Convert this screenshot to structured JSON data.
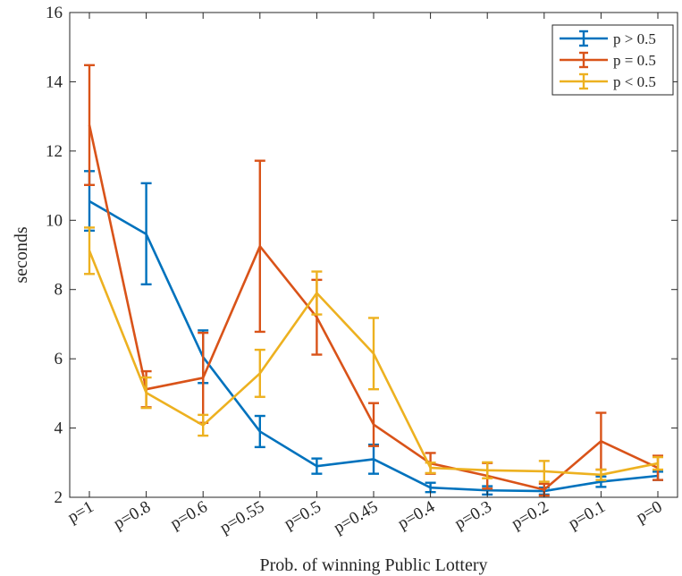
{
  "chart_data": {
    "type": "line",
    "title": "",
    "xlabel": "Prob. of winning Public Lottery",
    "ylabel": "seconds",
    "categories": [
      "p=1",
      "p=0.8",
      "p=0.6",
      "p=0.55",
      "p=0.5",
      "p=0.45",
      "p=0.4",
      "p=0.3",
      "p=0.2",
      "p=0.1",
      "p=0"
    ],
    "ylim": [
      2,
      16
    ],
    "yticks": [
      "2",
      "4",
      "6",
      "8",
      "10",
      "12",
      "14",
      "16"
    ],
    "grid": false,
    "legend_position": "top-right",
    "series": [
      {
        "name": "p > 0.5",
        "color": "#0072BD",
        "values": [
          10.55,
          9.6,
          6.05,
          3.9,
          2.9,
          3.1,
          2.28,
          2.2,
          2.18,
          2.45,
          2.62
        ],
        "err_low": [
          9.7,
          8.15,
          5.3,
          3.45,
          2.68,
          2.68,
          2.15,
          2.08,
          2.08,
          2.3,
          2.5
        ],
        "err_high": [
          11.42,
          11.07,
          6.82,
          4.35,
          3.12,
          3.52,
          2.42,
          2.32,
          2.28,
          2.6,
          2.74
        ]
      },
      {
        "name": "p = 0.5",
        "color": "#D95319",
        "values": [
          12.75,
          5.12,
          5.45,
          9.25,
          7.2,
          4.1,
          2.98,
          2.62,
          2.22,
          3.62,
          2.85
        ],
        "err_low": [
          11.02,
          4.6,
          4.15,
          6.78,
          6.12,
          3.48,
          2.68,
          2.25,
          2.05,
          2.8,
          2.5
        ],
        "err_high": [
          14.48,
          5.64,
          6.75,
          11.72,
          8.28,
          4.72,
          3.28,
          2.99,
          2.39,
          4.44,
          3.2
        ]
      },
      {
        "name": "p < 0.5",
        "color": "#EDB120",
        "values": [
          9.12,
          5.02,
          4.08,
          5.58,
          7.9,
          6.15,
          2.85,
          2.78,
          2.75,
          2.65,
          2.98
        ],
        "err_low": [
          8.45,
          4.58,
          3.78,
          4.9,
          7.28,
          5.12,
          2.7,
          2.55,
          2.45,
          2.5,
          2.8
        ],
        "err_high": [
          9.79,
          5.46,
          4.38,
          6.26,
          8.52,
          7.18,
          3.0,
          3.01,
          3.05,
          2.8,
          3.16
        ]
      }
    ]
  }
}
